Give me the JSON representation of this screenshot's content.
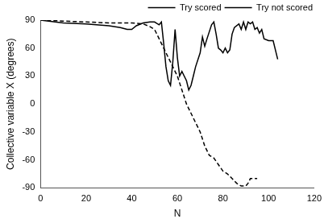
{
  "chart_data": {
    "type": "line",
    "x_label": "N",
    "y_label": "Collective variable X (degrees)",
    "xlim": [
      0,
      120
    ],
    "xticks": [
      0,
      20,
      40,
      60,
      80,
      100,
      120
    ],
    "ylim": [
      -90,
      90
    ],
    "yticks": [
      -90,
      -60,
      -30,
      0,
      30,
      60,
      90
    ],
    "grid": false,
    "legend": "top-right",
    "series": [
      {
        "name": "Try scored",
        "color": "#000000",
        "line_style": "dashed",
        "marker": "none",
        "x": [
          0,
          10,
          20,
          30,
          40,
          45,
          48,
          50,
          52,
          55,
          58,
          60,
          62,
          64,
          66,
          68,
          70,
          72,
          74,
          76,
          78,
          80,
          82,
          84,
          86,
          88,
          90,
          91,
          92,
          95
        ],
        "values": [
          90,
          89,
          88,
          87,
          87,
          86,
          83,
          80,
          70,
          55,
          40,
          30,
          15,
          0,
          -10,
          -20,
          -30,
          -45,
          -55,
          -58,
          -65,
          -72,
          -75,
          -80,
          -85,
          -88,
          -88,
          -85,
          -80,
          -80
        ]
      },
      {
        "name": "Try not scored",
        "color": "#000000",
        "line_style": "solid",
        "marker": "none",
        "x": [
          0,
          10,
          20,
          30,
          35,
          38,
          40,
          42,
          45,
          48,
          50,
          52,
          53,
          54,
          55,
          56,
          57,
          58,
          59,
          60,
          61,
          62,
          63,
          64,
          65,
          66,
          67,
          68,
          70,
          71,
          72,
          73,
          75,
          76,
          77,
          78,
          79,
          80,
          81,
          82,
          83,
          84,
          85,
          87,
          88,
          89,
          90,
          91,
          92,
          93,
          94,
          95,
          96,
          97,
          98,
          100,
          102,
          104
        ],
        "values": [
          90,
          87,
          86,
          84,
          82,
          80,
          80,
          84,
          87,
          88,
          88,
          85,
          88,
          65,
          40,
          25,
          20,
          45,
          80,
          50,
          30,
          35,
          30,
          25,
          15,
          20,
          30,
          40,
          55,
          72,
          62,
          70,
          85,
          88,
          75,
          60,
          58,
          55,
          60,
          55,
          58,
          75,
          82,
          86,
          80,
          88,
          80,
          88,
          86,
          88,
          80,
          82,
          76,
          80,
          70,
          68,
          68,
          48
        ]
      }
    ]
  }
}
